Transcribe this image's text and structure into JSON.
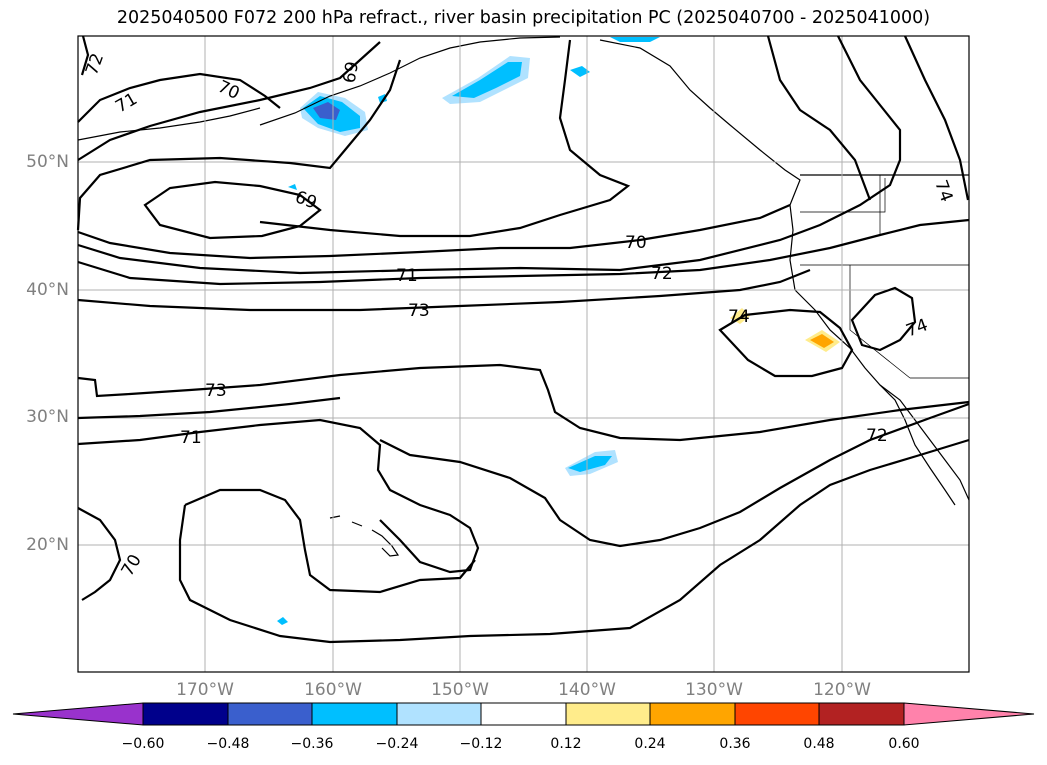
{
  "title": "2025040500 F072 200 hPa refract., river basin precipitation PC (2025040700 - 2025041000)",
  "map": {
    "lon_range": [
      -180,
      -110
    ],
    "lat_range": [
      10,
      60
    ],
    "grid": true,
    "lat_ticks": [
      {
        "label": "50°N"
      },
      {
        "label": "40°N"
      },
      {
        "label": "30°N"
      },
      {
        "label": "20°N"
      }
    ],
    "lon_ticks": [
      {
        "label": "170°W"
      },
      {
        "label": "160°W"
      },
      {
        "label": "150°W"
      },
      {
        "label": "140°W"
      },
      {
        "label": "130°W"
      },
      {
        "label": "120°W"
      }
    ],
    "contour_labels": [
      "72",
      "71",
      "70",
      "69",
      "69",
      "70",
      "71",
      "72",
      "73",
      "73",
      "71",
      "72",
      "70",
      "74",
      "74",
      "74"
    ]
  },
  "colorbar": {
    "ticks": [
      "−0.60",
      "−0.48",
      "−0.36",
      "−0.24",
      "−0.12",
      "0.12",
      "0.24",
      "0.36",
      "0.48",
      "0.60"
    ],
    "colors": [
      "#9932cc",
      "#00008b",
      "#3a5fcd",
      "#00bfff",
      "#b0e2ff",
      "#ffffff",
      "#ffec8b",
      "#ffa500",
      "#ff4500",
      "#b22222",
      "#ff82ab"
    ],
    "extend": "both"
  }
}
